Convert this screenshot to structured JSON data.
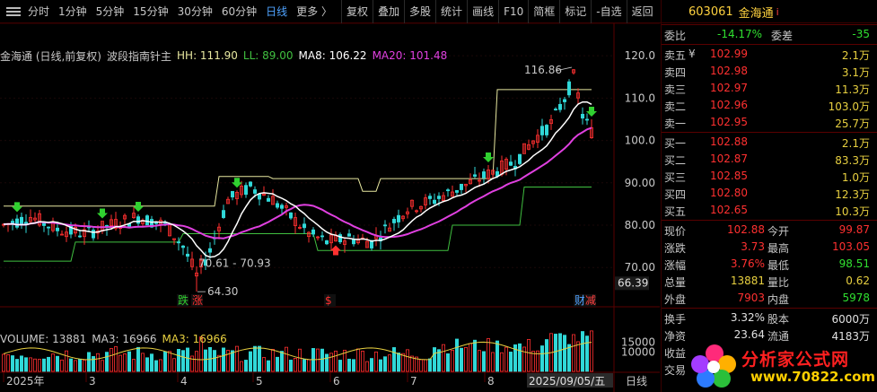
{
  "toolbar": {
    "periods": [
      "分时",
      "1分钟",
      "5分钟",
      "15分钟",
      "30分钟",
      "60分钟",
      "日线",
      "更多 〉"
    ],
    "active_period": "日线",
    "tools": [
      "复权",
      "叠加",
      "多股",
      "统计",
      "画线",
      "F10",
      "简框",
      "标记",
      "-自选",
      "返回"
    ]
  },
  "indicator": {
    "stock_label": "金海通 (日线,前复权)",
    "name": "波段指南针主",
    "hh": "HH: 111.90",
    "ll": "LL: 89.00",
    "ma8": "MA8: 106.22",
    "ma20": "MA20: 101.48"
  },
  "price_axis": {
    "labels": [
      "120.0",
      "110.0",
      "100.0",
      "90.00",
      "80.00",
      "70.00"
    ],
    "current_tag": "66.39"
  },
  "annotations": {
    "high": "116.86",
    "range": "70.61 - 70.93",
    "low": "64.30",
    "marks": [
      "跌",
      "涨",
      "$",
      "财",
      "减"
    ]
  },
  "volume": {
    "label": "VOLUME: 13881",
    "ma3": "MA3: 16966",
    "ma3b": "MA3: 16966",
    "axis": [
      "15000",
      "10000"
    ]
  },
  "date_axis": {
    "labels": [
      "2025年",
      "3",
      "4",
      "5",
      "6",
      "7",
      "8"
    ],
    "current": "2025/09/05/五",
    "period": "日线"
  },
  "quote": {
    "code": "603061",
    "name": "金海通",
    "info_icon": "i",
    "weibi_label": "委比",
    "weibi": "-14.17%",
    "weicha_label": "委差",
    "weicha": "-35",
    "asks": [
      {
        "label": "卖五",
        "mark": "¥",
        "price": "102.99",
        "vol": "2.1万"
      },
      {
        "label": "卖四",
        "mark": "",
        "price": "102.98",
        "vol": "3.1万"
      },
      {
        "label": "卖三",
        "mark": "",
        "price": "102.97",
        "vol": "11.3万"
      },
      {
        "label": "卖二",
        "mark": "",
        "price": "102.96",
        "vol": "103.0万"
      },
      {
        "label": "卖一",
        "mark": "",
        "price": "102.95",
        "vol": "25.7万"
      }
    ],
    "bids": [
      {
        "label": "买一",
        "price": "102.88",
        "vol": "2.1万"
      },
      {
        "label": "买二",
        "price": "102.87",
        "vol": "83.3万"
      },
      {
        "label": "买三",
        "price": "102.85",
        "vol": "1.0万"
      },
      {
        "label": "买四",
        "price": "102.80",
        "vol": "12.3万"
      },
      {
        "label": "买五",
        "price": "102.65",
        "vol": "10.3万"
      }
    ],
    "stats1": [
      {
        "l1": "现价",
        "v1": "102.88",
        "c1": "red",
        "l2": "今开",
        "v2": "99.87",
        "c2": "red"
      },
      {
        "l1": "涨跌",
        "v1": "3.73",
        "c1": "red",
        "l2": "最高",
        "v2": "103.05",
        "c2": "red"
      },
      {
        "l1": "涨幅",
        "v1": "3.76%",
        "c1": "red",
        "l2": "最低",
        "v2": "98.51",
        "c2": "green"
      },
      {
        "l1": "总量",
        "v1": "13881",
        "c1": "yellow",
        "l2": "量比",
        "v2": "0.62",
        "c2": "yellow"
      },
      {
        "l1": "外盘",
        "v1": "7903",
        "c1": "red",
        "l2": "内盘",
        "v2": "5978",
        "c2": "green"
      }
    ],
    "stats2": [
      {
        "l1": "换手",
        "v1": "3.32%",
        "l2": "股本",
        "v2": "6000万"
      },
      {
        "l1": "净资",
        "v1": "23.64",
        "l2": "流通",
        "v2": "4183万"
      }
    ],
    "extra": [
      "收益",
      "交易"
    ]
  },
  "logo": {
    "text": "分析家公式网",
    "url": "www.70822.com"
  },
  "colors": {
    "up": "#ff3030",
    "down": "#30d8d8",
    "ma8": "#ffffff",
    "ma20": "#e040e0",
    "hh": "#e8e8a0",
    "ll": "#40c040"
  }
}
